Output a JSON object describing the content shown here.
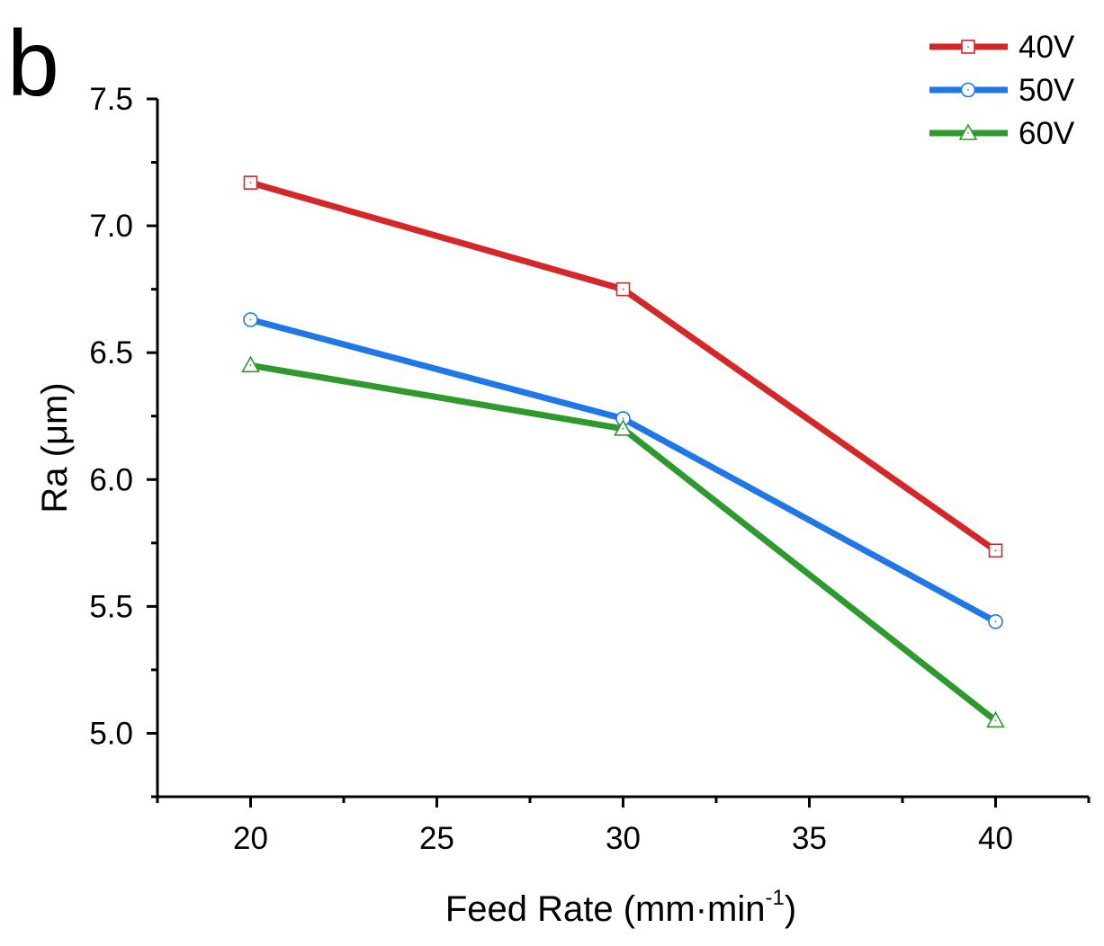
{
  "chart_data": {
    "type": "line",
    "panel_label": "b",
    "title": "",
    "xlabel_main": "Feed Rate (mm·min",
    "xlabel_sup": "-1",
    "xlabel_close": ")",
    "ylabel": "Ra (μm)",
    "xlim": [
      17.5,
      42.5
    ],
    "ylim": [
      4.75,
      7.5
    ],
    "x_ticks": [
      20,
      25,
      30,
      35,
      40
    ],
    "x_tick_labels": [
      "20",
      "25",
      "30",
      "35",
      "40"
    ],
    "y_ticks": [
      5.0,
      5.5,
      6.0,
      6.5,
      7.0,
      7.5
    ],
    "y_tick_labels": [
      "5.0",
      "5.5",
      "6.0",
      "6.5",
      "7.0",
      "7.5"
    ],
    "grid": false,
    "legend_position": "top-right",
    "x": [
      20,
      30,
      40
    ],
    "series": [
      {
        "name": "40V",
        "values": [
          7.17,
          6.75,
          5.72
        ],
        "color": "#d62728",
        "marker": "square"
      },
      {
        "name": "50V",
        "values": [
          6.63,
          6.24,
          5.44
        ],
        "color": "#1f77e8",
        "marker": "circle"
      },
      {
        "name": "60V",
        "values": [
          6.45,
          6.2,
          5.05
        ],
        "color": "#2e9a2e",
        "marker": "triangle"
      }
    ]
  }
}
